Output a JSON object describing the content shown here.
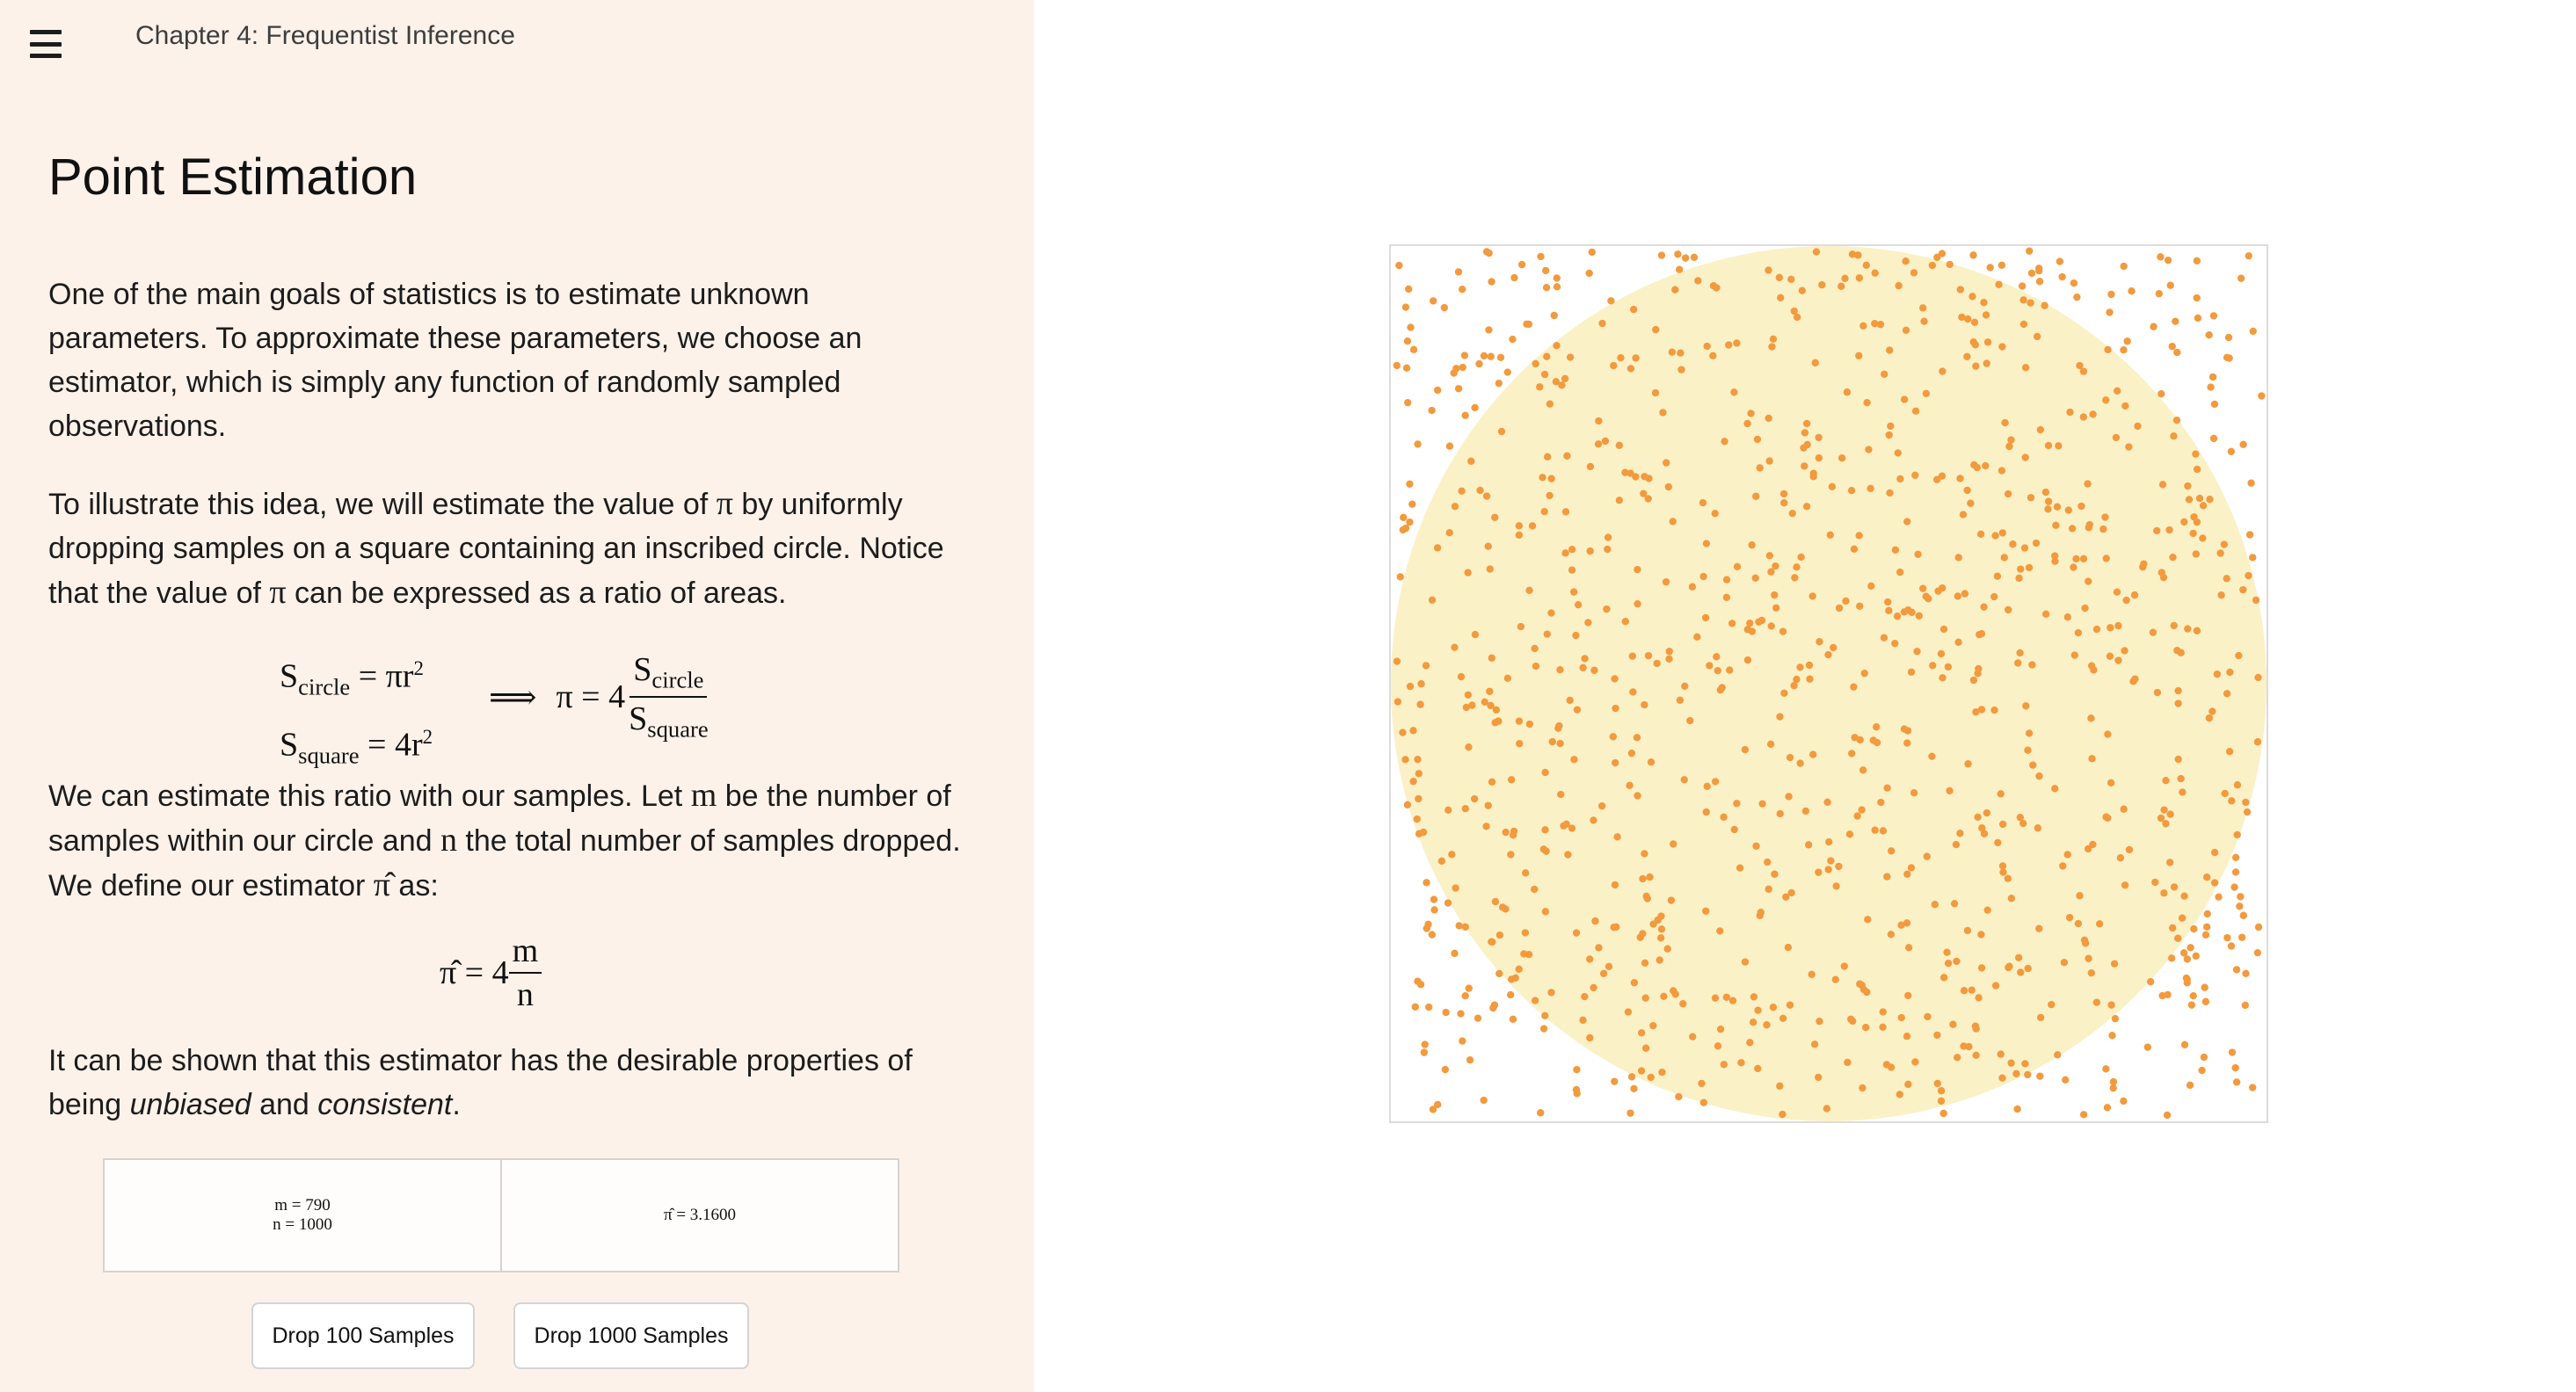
{
  "header": {
    "menu_icon": "hamburger-menu-icon",
    "chapter": "Chapter 4: Frequentist Inference"
  },
  "content": {
    "title": "Point Estimation",
    "paragraph1": "One of the main goals of statistics is to estimate unknown parameters. To approximate these parameters, we choose an estimator, which is simply any function of randomly sampled observations.",
    "paragraph2_a": "To illustrate this idea, we will estimate the value of ",
    "paragraph2_b": " by uniformly dropping samples on a square containing an inscribed circle. Notice that the value of ",
    "paragraph2_c": " can be expressed as a ratio of areas.",
    "paragraph3_a": "We can estimate this ratio with our samples. Let ",
    "paragraph3_b": " be the number of samples within our circle and ",
    "paragraph3_c": " the total number of samples dropped. We define our estimator ",
    "paragraph3_d": " as:",
    "paragraph4_a": "It can be shown that this estimator has the desirable properties of being ",
    "paragraph4_b": "unbiased",
    "paragraph4_c": " and ",
    "paragraph4_d": "consistent",
    "paragraph4_e": ".",
    "sym_pi": "π",
    "sym_m": "m",
    "sym_n": "n",
    "sym_pihat": "π̂"
  },
  "equations": {
    "s": "S",
    "circle_sub": "circle",
    "square_sub": "square",
    "eq": "=",
    "pi_r": "πr",
    "four_r": "4r",
    "sq": "2",
    "implies": "⟹",
    "pi_eq_4": "π = 4",
    "est_lhs": "π̂ = 4",
    "m": "m",
    "n": "n"
  },
  "stats": {
    "m_label": "m",
    "m_value": "790",
    "n_label": "n",
    "n_value": "1000",
    "pihat_label": "π̂",
    "pihat_value": "3.1600"
  },
  "buttons": {
    "drop100": "Drop 100 Samples",
    "drop1000": "Drop 1000 Samples"
  },
  "plot": {
    "square_border_color": "#dcdcdc",
    "circle_color": "#fbf1c7",
    "sample_color": "#f29a3d",
    "total_samples": 1000,
    "samples_inside": 790
  }
}
